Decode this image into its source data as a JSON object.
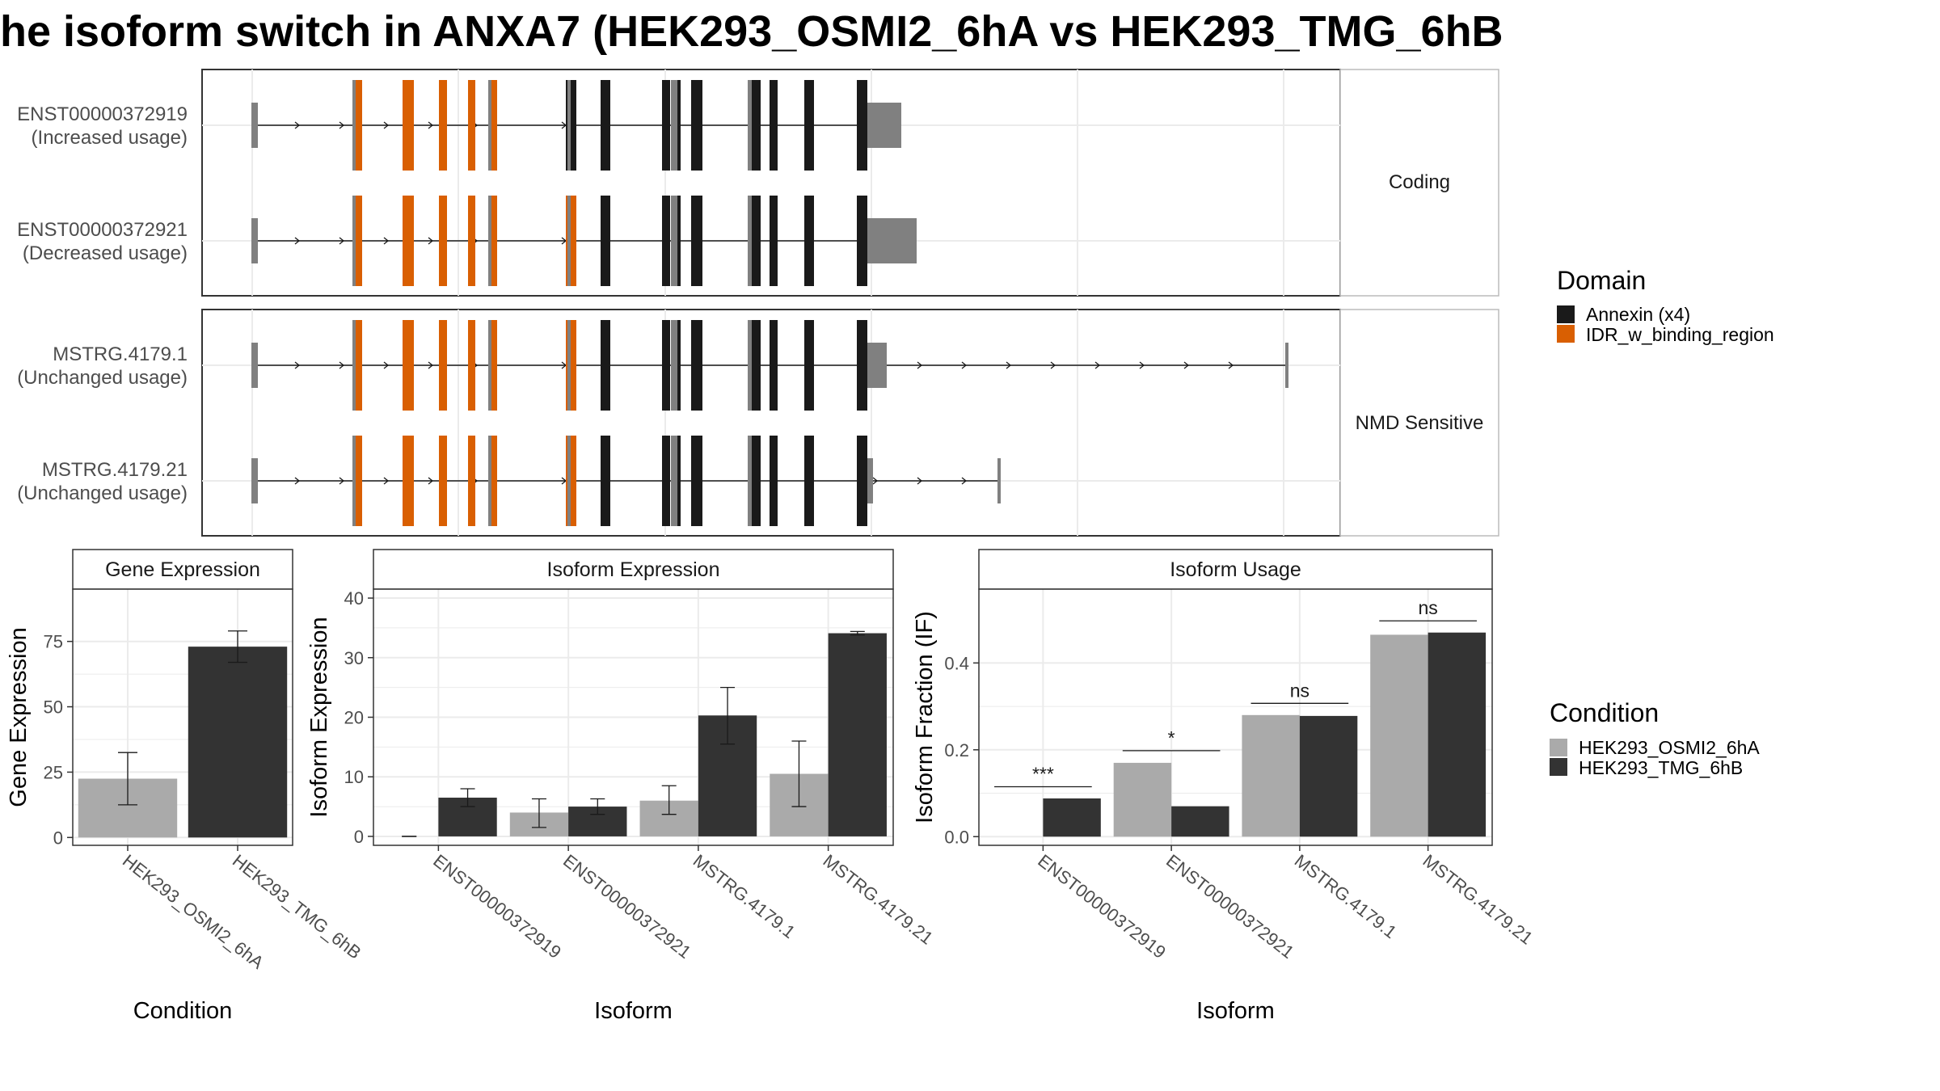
{
  "title": "he isoform switch in ANXA7 (HEK293_OSMI2_6hA vs HEK293_TMG_6hB",
  "colors": {
    "annexin": "#1a1a1a",
    "idr": "#d95f02",
    "utr": "#808080",
    "cond_a": "#aaaaaa",
    "cond_b": "#333333",
    "grid": "#ebebeb",
    "strip": "#ffffff"
  },
  "structure": {
    "panels": [
      {
        "label": "Coding",
        "transcripts": [
          {
            "id": "ENST00000372919",
            "usage": "(Increased usage)",
            "end": 1.0,
            "utr3_end": 0.87,
            "start": 0.045,
            "idr_exon5": 0
          },
          {
            "id": "ENST00000372921",
            "usage": "(Decreased usage)",
            "end": 1.0,
            "utr3_end": 0.916,
            "start": 0.045,
            "idr_exon5": 1
          }
        ]
      },
      {
        "label": "NMD Sensitive",
        "transcripts": [
          {
            "id": "MSTRG.4179.1",
            "usage": "(Unchanged usage)",
            "end": 1.0,
            "utr3_end": 0.905,
            "start": 0.045,
            "idr_exon5": 1
          },
          {
            "id": "MSTRG.4179.21",
            "usage": "(Unchanged usage)",
            "end": 1.0,
            "utr3_end": 0.58,
            "start": 0.045,
            "idr_exon5": 1
          }
        ]
      }
    ],
    "legend": {
      "title": "Domain",
      "items": [
        {
          "label": "Annexin (x4)",
          "color": "#1a1a1a"
        },
        {
          "label": "IDR_w_binding_region",
          "color": "#d95f02"
        }
      ]
    }
  },
  "chart_data": [
    {
      "type": "bar",
      "title": "Gene Expression",
      "xlabel": "Condition",
      "ylabel": "Gene Expression",
      "categories": [
        "HEK293_OSMI2_6hA",
        "HEK293_TMG_6hB"
      ],
      "values": [
        22.5,
        73.0
      ],
      "errors": [
        [
          12.5,
          32.5
        ],
        [
          67.0,
          79.0
        ]
      ],
      "ylim": [
        -3,
        95
      ],
      "yticks": [
        0,
        25,
        50,
        75
      ]
    },
    {
      "type": "bar",
      "title": "Isoform Expression",
      "xlabel": "Isoform",
      "ylabel": "Isoform Expression",
      "categories": [
        "ENST00000372919",
        "ENST00000372921",
        "MSTRG.4179.1",
        "MSTRG.4179.21"
      ],
      "series": [
        {
          "name": "HEK293_OSMI2_6hA",
          "values": [
            0.0,
            4.0,
            6.0,
            10.5
          ],
          "errors": [
            [
              0.0,
              0.0
            ],
            [
              1.5,
              6.3
            ],
            [
              3.7,
              8.5
            ],
            [
              5.0,
              16.0
            ]
          ]
        },
        {
          "name": "HEK293_TMG_6hB",
          "values": [
            6.5,
            5.0,
            20.3,
            34.1
          ],
          "errors": [
            [
              5.0,
              8.0
            ],
            [
              3.7,
              6.3
            ],
            [
              15.5,
              25.0
            ],
            [
              33.8,
              34.4
            ]
          ]
        }
      ],
      "ylim": [
        -1.5,
        41.5
      ],
      "yticks": [
        0,
        10,
        20,
        30,
        40
      ]
    },
    {
      "type": "bar",
      "title": "Isoform Usage",
      "xlabel": "Isoform",
      "ylabel": "Isoform Fraction (IF)",
      "categories": [
        "ENST00000372919",
        "ENST00000372921",
        "MSTRG.4179.1",
        "MSTRG.4179.21"
      ],
      "series": [
        {
          "name": "HEK293_OSMI2_6hA",
          "values": [
            0.0,
            0.17,
            0.28,
            0.465
          ]
        },
        {
          "name": "HEK293_TMG_6hB",
          "values": [
            0.088,
            0.07,
            0.278,
            0.47
          ]
        }
      ],
      "significance": [
        "***",
        "*",
        "ns",
        "ns"
      ],
      "sig_level": [
        0.115,
        0.198,
        0.307,
        0.497
      ],
      "ylim": [
        -0.02,
        0.57
      ],
      "yticks": [
        0.0,
        0.2,
        0.4
      ],
      "yticklabels": [
        "0.0",
        "0.2",
        "0.4"
      ]
    }
  ],
  "condition_legend": {
    "title": "Condition",
    "items": [
      {
        "label": "HEK293_OSMI2_6hA",
        "color": "#aaaaaa"
      },
      {
        "label": "HEK293_TMG_6hB",
        "color": "#333333"
      }
    ]
  }
}
